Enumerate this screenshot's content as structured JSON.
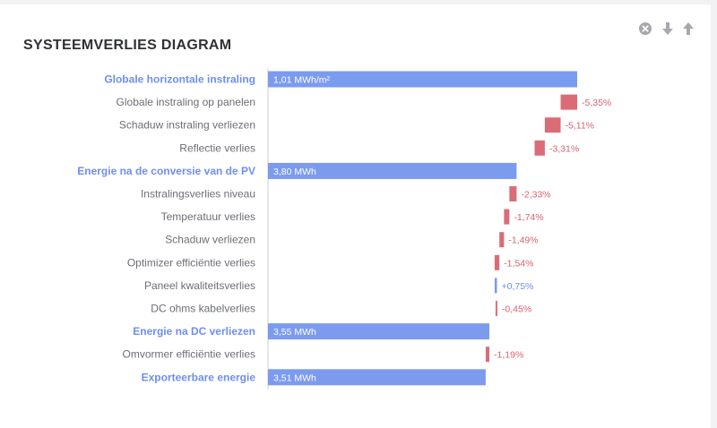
{
  "panel": {
    "title": "SYSTEEMVERLIES DIAGRAM",
    "icons": [
      "close-circle-icon",
      "arrow-down-icon",
      "arrow-up-icon"
    ]
  },
  "colors": {
    "total": "#7b9bef",
    "loss": "#db6c77",
    "gain": "#7b9bef",
    "axis": "#c9ccd3"
  },
  "chart_data": {
    "type": "waterfall",
    "title": "SYSTEEMVERLIES DIAGRAM",
    "unit_note": "values are percentage losses relative to the preceding total",
    "items": [
      {
        "label": "Globale horizontale instraling",
        "kind": "total",
        "value": 100,
        "display": "1,01 MWh/m²"
      },
      {
        "label": "Globale instraling op panelen",
        "kind": "delta",
        "value": -5.35,
        "display": "-5,35%"
      },
      {
        "label": "Schaduw instraling verliezen",
        "kind": "delta",
        "value": -5.11,
        "display": "-5,11%"
      },
      {
        "label": "Reflectie verlies",
        "kind": "delta",
        "value": -3.31,
        "display": "-3,31%"
      },
      {
        "label": "Energie na de conversie van de PV",
        "kind": "total",
        "value": 80.4,
        "display": "3,80 MWh"
      },
      {
        "label": "Instralingsverlies niveau",
        "kind": "delta",
        "value": -2.33,
        "display": "-2,33%"
      },
      {
        "label": "Temperatuur verlies",
        "kind": "delta",
        "value": -1.74,
        "display": "-1,74%"
      },
      {
        "label": "Schaduw verliezen",
        "kind": "delta",
        "value": -1.49,
        "display": "-1,49%"
      },
      {
        "label": "Optimizer efficiëntie verlies",
        "kind": "delta",
        "value": -1.54,
        "display": "-1,54%"
      },
      {
        "label": "Paneel kwaliteitsverlies",
        "kind": "delta",
        "value": 0.75,
        "display": "+0,75%"
      },
      {
        "label": "DC ohms kabelverlies",
        "kind": "delta",
        "value": -0.45,
        "display": "-0,45%"
      },
      {
        "label": "Energie na DC verliezen",
        "kind": "total",
        "value": 71.6,
        "display": "3,55 MWh"
      },
      {
        "label": "Omvormer efficiëntie verlies",
        "kind": "delta",
        "value": -1.19,
        "display": "-1,19%"
      },
      {
        "label": "Exporteerbare energie",
        "kind": "total",
        "value": 70.4,
        "display": "3,51 MWh"
      }
    ]
  }
}
